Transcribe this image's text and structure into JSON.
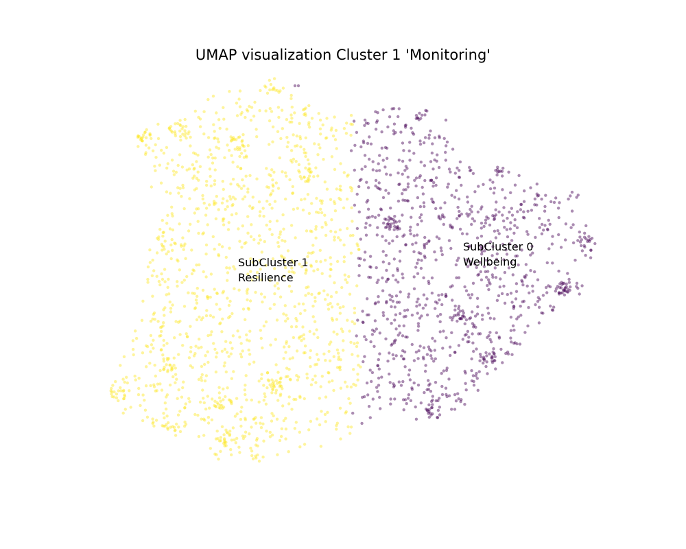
{
  "chart_data": {
    "type": "scatter",
    "title": "UMAP visualization Cluster 1 'Monitoring'",
    "xlabel": "",
    "ylabel": "",
    "axes_visible": false,
    "grid": false,
    "legend": "none",
    "colors": {
      "subcluster_0": "#440154",
      "subcluster_1": "#fde725"
    },
    "point_alpha": 0.45,
    "annotations": [
      {
        "id": "subcluster-1",
        "lines": [
          "SubCluster 1",
          "Resilience"
        ],
        "x": 3.47,
        "y": 4.12
      },
      {
        "id": "subcluster-0",
        "lines": [
          "SubCluster 0",
          "Wellbeing"
        ],
        "x": 6.75,
        "y": 4.35
      }
    ],
    "series": [
      {
        "id": "subcluster_0",
        "color": "#440154",
        "region": {
          "outline": [
            [
              5.15,
              6.35
            ],
            [
              5.3,
              6.42
            ],
            [
              5.6,
              6.45
            ],
            [
              6.0,
              6.42
            ],
            [
              6.35,
              6.2
            ],
            [
              6.55,
              5.95
            ],
            [
              6.75,
              5.6
            ],
            [
              7.2,
              5.6
            ],
            [
              7.6,
              5.45
            ],
            [
              8.05,
              5.25
            ],
            [
              8.35,
              5.0
            ],
            [
              8.55,
              4.7
            ],
            [
              8.65,
              4.4
            ],
            [
              8.6,
              4.0
            ],
            [
              8.45,
              3.7
            ],
            [
              8.15,
              3.45
            ],
            [
              7.85,
              3.2
            ],
            [
              7.55,
              2.9
            ],
            [
              7.3,
              2.65
            ],
            [
              7.05,
              2.4
            ],
            [
              6.85,
              2.15
            ],
            [
              6.6,
              2.0
            ],
            [
              6.35,
              1.9
            ],
            [
              6.1,
              1.85
            ],
            [
              5.85,
              1.95
            ],
            [
              5.6,
              2.1
            ],
            [
              5.4,
              1.85
            ],
            [
              5.2,
              1.7
            ],
            [
              5.05,
              1.95
            ],
            [
              5.2,
              2.35
            ],
            [
              5.3,
              2.8
            ],
            [
              5.15,
              3.2
            ],
            [
              5.25,
              3.6
            ],
            [
              5.2,
              4.0
            ],
            [
              5.25,
              4.5
            ],
            [
              5.15,
              4.9
            ],
            [
              5.2,
              5.3
            ],
            [
              5.1,
              5.7
            ],
            [
              5.15,
              6.0
            ]
          ],
          "count": 900,
          "dense_spots": [
            [
              6.2,
              6.3
            ],
            [
              8.4,
              5.1
            ],
            [
              8.55,
              4.5
            ],
            [
              6.3,
              2.0
            ],
            [
              7.1,
              2.8
            ],
            [
              7.35,
              5.55
            ],
            [
              5.75,
              4.75
            ],
            [
              6.65,
              3.4
            ],
            [
              8.2,
              3.8
            ]
          ]
        },
        "stray_points": [
          [
            4.3,
            6.75
          ],
          [
            4.35,
            6.75
          ],
          [
            6.5,
            6.25
          ]
        ]
      },
      {
        "id": "subcluster_1",
        "color": "#fde725",
        "region": {
          "outline": [
            [
              1.95,
              6.0
            ],
            [
              2.3,
              6.25
            ],
            [
              2.75,
              6.45
            ],
            [
              3.05,
              6.6
            ],
            [
              3.5,
              6.75
            ],
            [
              3.95,
              6.75
            ],
            [
              4.4,
              6.55
            ],
            [
              4.75,
              6.4
            ],
            [
              5.15,
              6.35
            ],
            [
              5.15,
              6.0
            ],
            [
              5.1,
              5.7
            ],
            [
              5.2,
              5.3
            ],
            [
              5.15,
              4.9
            ],
            [
              5.25,
              4.5
            ],
            [
              5.2,
              4.0
            ],
            [
              5.25,
              3.6
            ],
            [
              5.15,
              3.2
            ],
            [
              5.3,
              2.8
            ],
            [
              5.2,
              2.35
            ],
            [
              5.05,
              1.95
            ],
            [
              5.2,
              1.7
            ],
            [
              4.85,
              1.55
            ],
            [
              4.45,
              1.4
            ],
            [
              4.0,
              1.3
            ],
            [
              3.6,
              1.25
            ],
            [
              3.2,
              1.25
            ],
            [
              2.95,
              1.5
            ],
            [
              2.6,
              1.7
            ],
            [
              2.15,
              1.8
            ],
            [
              1.8,
              1.95
            ],
            [
              1.6,
              2.3
            ],
            [
              1.75,
              2.75
            ],
            [
              1.95,
              3.2
            ],
            [
              2.1,
              3.8
            ],
            [
              2.15,
              4.3
            ],
            [
              2.25,
              4.8
            ],
            [
              2.2,
              5.3
            ],
            [
              2.1,
              5.7
            ],
            [
              1.95,
              5.9
            ]
          ],
          "count": 1150,
          "dense_spots": [
            [
              2.05,
              6.05
            ],
            [
              4.0,
              6.75
            ],
            [
              2.6,
              6.1
            ],
            [
              4.45,
              5.45
            ],
            [
              3.3,
              1.6
            ],
            [
              1.7,
              2.25
            ],
            [
              2.5,
              1.75
            ],
            [
              3.25,
              2.1
            ],
            [
              4.0,
              2.4
            ],
            [
              2.45,
              2.7
            ],
            [
              3.45,
              5.9
            ]
          ]
        },
        "stray_points": []
      }
    ],
    "xlim": [
      0.0,
      10.0
    ],
    "ylim": [
      0.0,
      8.0
    ]
  }
}
